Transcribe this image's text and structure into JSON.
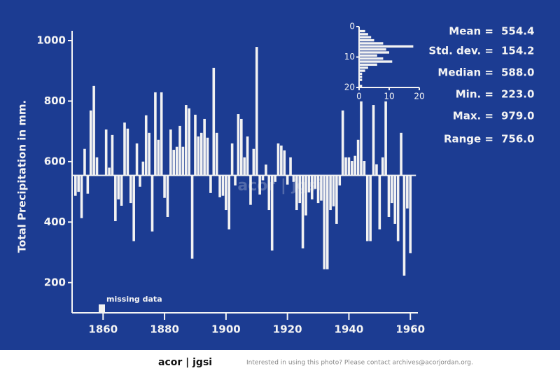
{
  "chart_data": [
    {
      "type": "deviation-bar",
      "y_label": "Total Precipitation in mm.",
      "annotation": "missing data",
      "baseline": 554.4,
      "color": "#f2f2f2",
      "x": [
        1851,
        1852,
        1853,
        1854,
        1855,
        1856,
        1857,
        1858,
        1859,
        1860,
        1861,
        1862,
        1863,
        1864,
        1865,
        1866,
        1867,
        1868,
        1869,
        1870,
        1871,
        1872,
        1873,
        1874,
        1875,
        1876,
        1877,
        1878,
        1879,
        1880,
        1881,
        1882,
        1883,
        1884,
        1885,
        1886,
        1887,
        1888,
        1889,
        1890,
        1891,
        1892,
        1893,
        1894,
        1895,
        1896,
        1897,
        1898,
        1899,
        1900,
        1901,
        1902,
        1903,
        1904,
        1905,
        1906,
        1907,
        1908,
        1909,
        1910,
        1911,
        1912,
        1913,
        1914,
        1915,
        1916,
        1917,
        1918,
        1919,
        1920,
        1921,
        1922,
        1923,
        1924,
        1925,
        1926,
        1927,
        1928,
        1929,
        1930,
        1931,
        1932,
        1933,
        1934,
        1935,
        1936,
        1937,
        1938,
        1939,
        1940,
        1941,
        1942,
        1943,
        1944,
        1945,
        1946,
        1947,
        1948,
        1949,
        1950,
        1951,
        1952,
        1953,
        1954,
        1955,
        1956,
        1957,
        1958,
        1959,
        1960
      ],
      "values": [
        487,
        500,
        413,
        642,
        494,
        769,
        850,
        614,
        null,
        null,
        706,
        580,
        688,
        403,
        475,
        454,
        729,
        709,
        463,
        337,
        660,
        517,
        600,
        753,
        695,
        369,
        829,
        672,
        829,
        480,
        417,
        706,
        639,
        649,
        718,
        649,
        787,
        776,
        279,
        755,
        683,
        695,
        741,
        679,
        496,
        910,
        695,
        482,
        487,
        440,
        376,
        660,
        521,
        757,
        741,
        614,
        683,
        457,
        642,
        979,
        491,
        538,
        590,
        440,
        306,
        533,
        660,
        653,
        637,
        524,
        614,
        533,
        440,
        463,
        313,
        422,
        498,
        475,
        510,
        463,
        471,
        244,
        244,
        440,
        452,
        394,
        521,
        769,
        614,
        614,
        602,
        619,
        672,
        799,
        602,
        337,
        337,
        787,
        591,
        376,
        614,
        799,
        417,
        463,
        394,
        337,
        695,
        223,
        445,
        297
      ],
      "xlim": [
        1849,
        1962
      ],
      "xticks": [
        1860,
        1880,
        1900,
        1920,
        1940,
        1960
      ],
      "ylim": [
        100,
        1000
      ],
      "yticks": [
        200,
        400,
        600,
        800,
        1000
      ]
    },
    {
      "type": "histogram",
      "orientation": "horizontal",
      "color": "#f2f2f2",
      "bins": [
        0,
        1,
        2,
        3,
        4,
        5,
        6,
        7,
        8,
        9,
        10,
        11,
        12,
        13,
        14,
        15,
        16,
        17,
        18,
        19,
        20
      ],
      "values": [
        0,
        2,
        3,
        4,
        5,
        8,
        18,
        9,
        10,
        6,
        8,
        11,
        6,
        3,
        2,
        1,
        1,
        1,
        0,
        1
      ],
      "xlim": [
        0,
        20
      ],
      "xticks": [
        0,
        10,
        20
      ],
      "ylim": [
        0,
        20
      ],
      "yticks": [
        0,
        10,
        20
      ]
    }
  ],
  "stats": [
    {
      "label": "Mean =",
      "value": "554.4"
    },
    {
      "label": "Std. dev. =",
      "value": "154.2"
    },
    {
      "label": "Median =",
      "value": "588.0"
    },
    {
      "label": "Min. =",
      "value": "223.0"
    },
    {
      "label": "Max. =",
      "value": "979.0"
    },
    {
      "label": "Range =",
      "value": "756.0"
    }
  ],
  "watermark": "acor | jgsi",
  "footer": {
    "logo": "acor | jgsi",
    "note": "Interested in using this photo? Please contact archives@acorjordan.org."
  }
}
